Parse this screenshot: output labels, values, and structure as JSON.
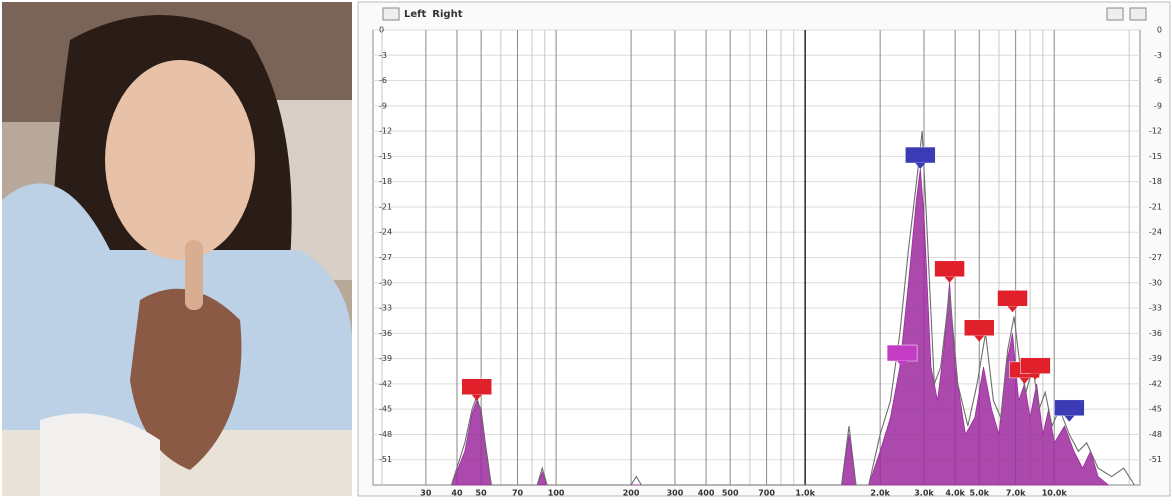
{
  "chart_data": {
    "type": "spectrum",
    "legend": [
      {
        "text": "Left",
        "color": "#2a2ab0"
      },
      {
        "text": "Right",
        "color": "#e0202a"
      }
    ],
    "log_x": true,
    "grid": true,
    "xlim": [
      18.4,
      22100
    ],
    "ylim": [
      -54,
      0
    ],
    "xticks": [
      30,
      40,
      50,
      70,
      100,
      200,
      300,
      400,
      500,
      700,
      {
        "value": 1000,
        "label": "1.0k"
      },
      {
        "value": 2000,
        "label": "2.0k"
      },
      {
        "value": 3000,
        "label": "3.0k"
      },
      {
        "value": 4000,
        "label": "4.0k"
      },
      {
        "value": 5000,
        "label": "5.0k"
      },
      {
        "value": 7000,
        "label": "7.0k"
      },
      {
        "value": 10000,
        "label": "10.0k"
      }
    ],
    "x_minor_grid": [
      20,
      60,
      80,
      90,
      600,
      800,
      900,
      6000,
      8000,
      9000,
      20000
    ],
    "yticks": [
      0,
      -3,
      -6,
      -9,
      -12,
      -15,
      -18,
      -21,
      -24,
      -27,
      -30,
      -33,
      -36,
      -39,
      -42,
      -45,
      -48,
      -51
    ],
    "series": [
      {
        "name": "Left",
        "color": "#9c2a9e",
        "style": "area",
        "x": [
          38,
          43,
          46,
          48,
          50,
          52,
          55,
          84,
          88,
          92,
          1400,
          1500,
          1600,
          1800,
          2000,
          2200,
          2400,
          2600,
          2800,
          2900,
          3000,
          3200,
          3400,
          3600,
          3800,
          4000,
          4400,
          4800,
          5200,
          5600,
          6000,
          6400,
          6800,
          7200,
          7600,
          8000,
          8500,
          9000,
          9500,
          10000,
          11000,
          12000,
          13000,
          14000,
          15000,
          16500
        ],
        "values": [
          -54,
          -50,
          -45.5,
          -44,
          -45,
          -49,
          -54,
          -54,
          -52.5,
          -54,
          -54,
          -48,
          -54,
          -54,
          -50,
          -46,
          -40,
          -30,
          -20,
          -16.5,
          -22,
          -40,
          -44,
          -38,
          -30,
          -40,
          -48,
          -46,
          -40,
          -45,
          -48,
          -40,
          -36,
          -44,
          -42,
          -46,
          -42,
          -48,
          -45,
          -49,
          -47,
          -50,
          -52,
          -50,
          -53,
          -54
        ]
      },
      {
        "name": "Right",
        "color": "#6e6e6e",
        "style": "line",
        "x": [
          38,
          43,
          46,
          48,
          50,
          52,
          55,
          84,
          88,
          92,
          200,
          210,
          220,
          1400,
          1500,
          1600,
          1800,
          2000,
          2200,
          2400,
          2600,
          2800,
          2950,
          3100,
          3300,
          3500,
          3800,
          4100,
          4500,
          4900,
          5300,
          5700,
          6100,
          6500,
          6900,
          7300,
          7700,
          8200,
          8700,
          9200,
          9800,
          10500,
          11500,
          12500,
          13500,
          15000,
          17000,
          19000,
          21000
        ],
        "values": [
          -54,
          -49,
          -45,
          -43.5,
          -45.5,
          -50,
          -54,
          -54,
          -52,
          -54,
          -54,
          -53,
          -54,
          -54,
          -47,
          -54,
          -54,
          -48,
          -44,
          -36,
          -26,
          -18,
          -12,
          -25,
          -42,
          -40,
          -31,
          -42,
          -47,
          -42,
          -36,
          -44,
          -46,
          -38,
          -34,
          -40,
          -43,
          -40,
          -45,
          -43,
          -47,
          -45,
          -48,
          -50,
          -49,
          -52,
          -53,
          -52,
          -54
        ]
      }
    ],
    "markers": [
      {
        "x": 48,
        "y": -44,
        "color": "#e0202a"
      },
      {
        "x": 2900,
        "y": -16.5,
        "color": "#3b3bb5"
      },
      {
        "x": 3800,
        "y": -30,
        "color": "#e0202a"
      },
      {
        "x": 2450,
        "y": -40,
        "color": "#c43cc4"
      },
      {
        "x": 5000,
        "y": -37,
        "color": "#e0202a"
      },
      {
        "x": 6800,
        "y": -33.5,
        "color": "#e0202a"
      },
      {
        "x": 7600,
        "y": -42,
        "color": "#e0202a"
      },
      {
        "x": 8400,
        "y": -41.5,
        "color": "#e0202a"
      },
      {
        "x": 11500,
        "y": -46.5,
        "color": "#3b3bb5"
      }
    ]
  }
}
